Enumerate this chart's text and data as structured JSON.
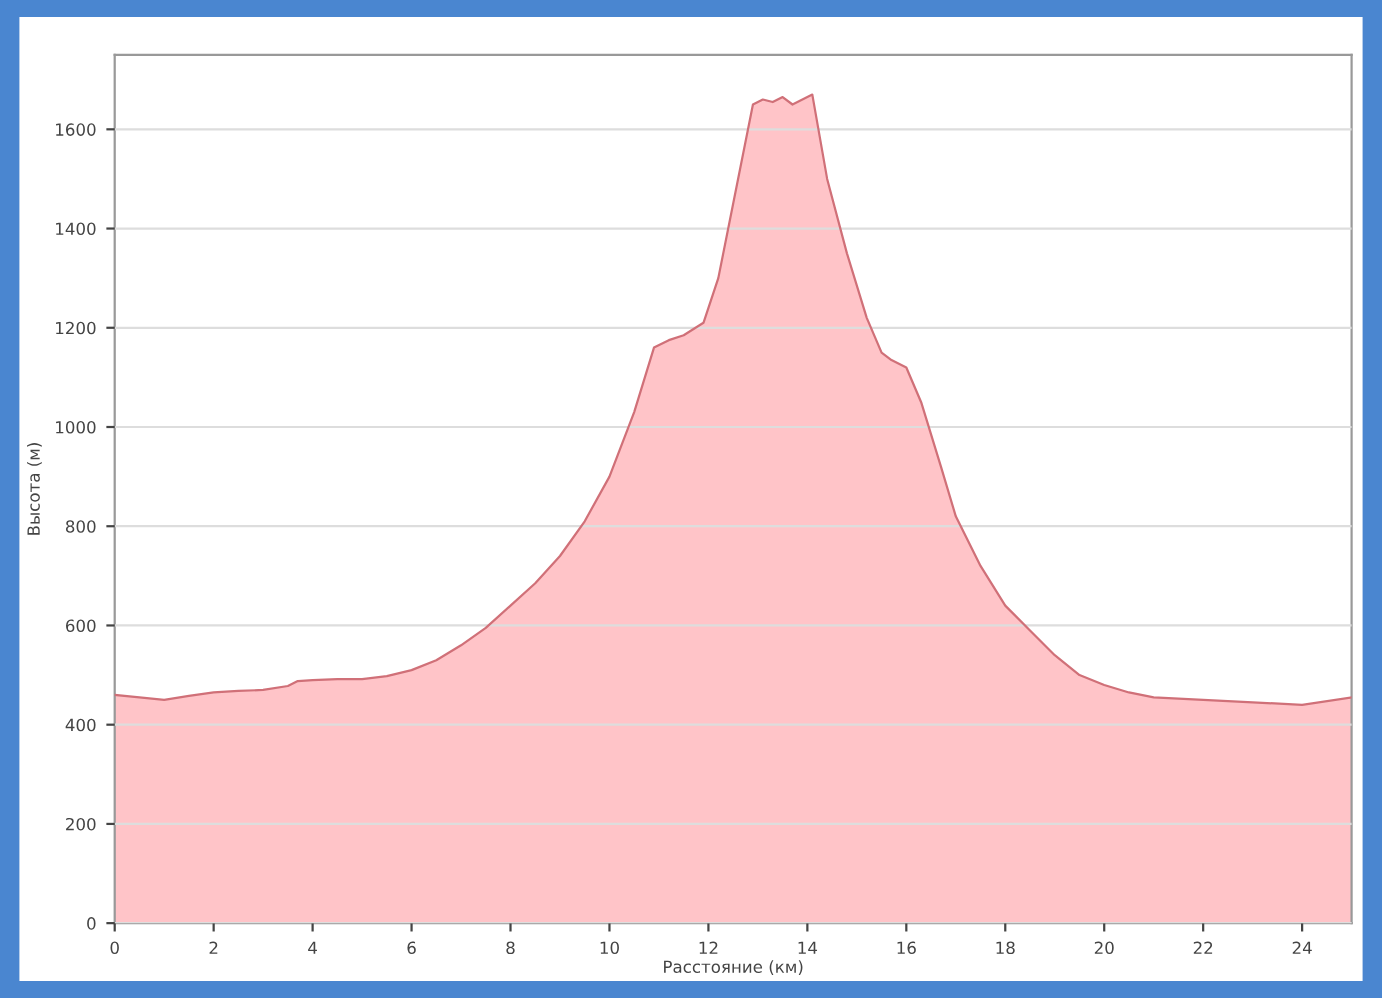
{
  "chart_data": {
    "type": "area",
    "xlabel": "Расстояние (км)",
    "ylabel": "Высота (м)",
    "x": [
      0,
      0.5,
      1,
      1.5,
      2,
      2.5,
      3,
      3.5,
      3.7,
      4,
      4.5,
      5,
      5.5,
      6,
      6.5,
      7,
      7.5,
      8,
      8.5,
      9,
      9.5,
      10,
      10.5,
      10.9,
      11.2,
      11.5,
      11.9,
      12.2,
      12.5,
      12.9,
      13.1,
      13.3,
      13.5,
      13.7,
      13.9,
      14.1,
      14.4,
      14.8,
      15.2,
      15.5,
      15.7,
      16,
      16.3,
      16.7,
      17,
      17.5,
      18,
      18.5,
      19,
      19.5,
      20,
      20.5,
      21,
      22,
      23,
      24,
      25
    ],
    "series": [
      {
        "color": "#ffc4c8",
        "values": [
          460,
          455,
          450,
          458,
          465,
          468,
          470,
          478,
          488,
          490,
          492,
          492,
          498,
          510,
          530,
          560,
          595,
          640,
          685,
          740,
          810,
          900,
          1030,
          1160,
          1175,
          1185,
          1210,
          1300,
          1450,
          1650,
          1660,
          1655,
          1665,
          1650,
          1660,
          1670,
          1500,
          1350,
          1220,
          1150,
          1135,
          1120,
          1050,
          920,
          820,
          720,
          640,
          590,
          540,
          500,
          480,
          465,
          455,
          450,
          445,
          440,
          455
        ]
      }
    ],
    "xlim": [
      0,
      25
    ],
    "ylim": [
      0,
      1750
    ],
    "xticks": [
      0,
      2,
      4,
      6,
      8,
      10,
      12,
      14,
      16,
      18,
      20,
      22,
      24
    ],
    "yticks": [
      0,
      200,
      400,
      600,
      800,
      1000,
      1200,
      1400,
      1600
    ],
    "grid": "y",
    "legend": false
  }
}
